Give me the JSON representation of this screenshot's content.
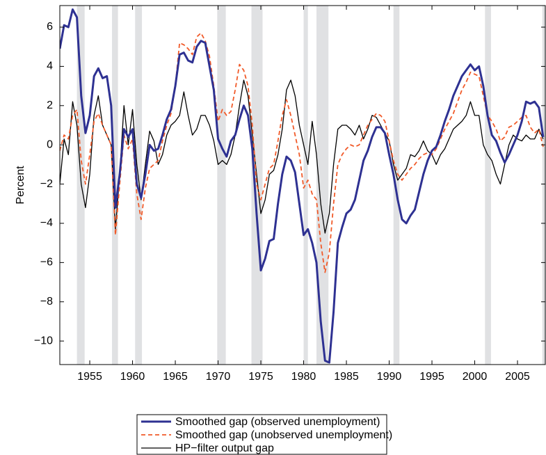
{
  "chart_data": {
    "type": "line",
    "y_label": "Percent",
    "xlim": [
      1951.5,
      2008.25
    ],
    "ylim": [
      -11.2,
      7.1
    ],
    "xticks": [
      1955,
      1960,
      1965,
      1970,
      1975,
      1980,
      1985,
      1990,
      1995,
      2000,
      2005
    ],
    "yticks": [
      {
        "value": -10,
        "label": "−10"
      },
      {
        "value": -8,
        "label": "−8"
      },
      {
        "value": -6,
        "label": "−6"
      },
      {
        "value": -4,
        "label": "−4"
      },
      {
        "value": -2,
        "label": "−2"
      },
      0,
      2,
      4,
      6
    ],
    "grid": false,
    "shaded_periods": [
      [
        1953.5,
        1954.4
      ],
      [
        1957.6,
        1958.3
      ],
      [
        1960.3,
        1961.1
      ],
      [
        1969.9,
        1970.9
      ],
      [
        1973.9,
        1975.2
      ],
      [
        1980.0,
        1980.5
      ],
      [
        1981.5,
        1982.9
      ],
      [
        1990.5,
        1991.2
      ],
      [
        2001.2,
        2001.9
      ],
      [
        2007.9,
        2008.25
      ]
    ],
    "shade_color": "#e0e1e3",
    "x": [
      1951.5,
      1952,
      1952.5,
      1953,
      1953.5,
      1954,
      1954.5,
      1955,
      1955.5,
      1956,
      1956.5,
      1957,
      1957.5,
      1958,
      1958.5,
      1959,
      1959.5,
      1960,
      1960.5,
      1961,
      1961.5,
      1962,
      1962.5,
      1963,
      1963.5,
      1964,
      1964.5,
      1965,
      1965.5,
      1966,
      1966.5,
      1967,
      1967.5,
      1968,
      1968.5,
      1969,
      1969.5,
      1970,
      1970.5,
      1971,
      1971.5,
      1972,
      1972.5,
      1973,
      1973.5,
      1974,
      1974.5,
      1975,
      1975.5,
      1976,
      1976.5,
      1977,
      1977.5,
      1978,
      1978.5,
      1979,
      1979.5,
      1980,
      1980.5,
      1981,
      1981.5,
      1982,
      1982.5,
      1983,
      1983.5,
      1984,
      1984.5,
      1985,
      1985.5,
      1986,
      1986.5,
      1987,
      1987.5,
      1988,
      1988.5,
      1989,
      1989.5,
      1990,
      1990.5,
      1991,
      1991.5,
      1992,
      1992.5,
      1993,
      1993.5,
      1994,
      1994.5,
      1995,
      1995.5,
      1996,
      1996.5,
      1997,
      1997.5,
      1998,
      1998.5,
      1999,
      1999.5,
      2000,
      2000.5,
      2001,
      2001.5,
      2002,
      2002.5,
      2003,
      2003.5,
      2004,
      2004.5,
      2005,
      2005.5,
      2006,
      2006.5,
      2007,
      2007.5,
      2008
    ],
    "series": [
      {
        "name": "Smoothed gap (observed unemployment)",
        "color": "#2e3192",
        "dash": false,
        "width": 3,
        "values": [
          4.9,
          6.1,
          6.0,
          6.9,
          6.5,
          2.5,
          0.6,
          1.5,
          3.5,
          3.9,
          3.4,
          3.5,
          2.0,
          -3.2,
          -1.5,
          0.8,
          0.4,
          0.8,
          -2.0,
          -2.7,
          -1.5,
          0.0,
          -0.3,
          -0.2,
          0.5,
          1.3,
          1.8,
          3.0,
          4.6,
          4.7,
          4.3,
          4.2,
          5.0,
          5.3,
          5.2,
          4.0,
          2.8,
          0.3,
          -0.2,
          -0.6,
          0.2,
          0.5,
          1.3,
          2.0,
          1.5,
          -0.2,
          -3.5,
          -6.4,
          -5.8,
          -4.9,
          -4.8,
          -3.0,
          -1.5,
          -0.6,
          -0.8,
          -1.4,
          -3.0,
          -4.6,
          -4.3,
          -5.0,
          -6.0,
          -9.0,
          -11.0,
          -11.1,
          -8.5,
          -5.0,
          -4.2,
          -3.5,
          -3.3,
          -2.8,
          -1.8,
          -0.8,
          -0.3,
          0.4,
          0.9,
          0.9,
          0.6,
          -0.5,
          -1.5,
          -2.8,
          -3.8,
          -4.0,
          -3.6,
          -3.3,
          -2.4,
          -1.5,
          -0.8,
          -0.3,
          -0.1,
          0.5,
          1.2,
          1.8,
          2.5,
          3.0,
          3.5,
          3.8,
          4.1,
          3.8,
          4.0,
          3.0,
          1.5,
          0.5,
          0.2,
          -0.4,
          -0.9,
          -0.5,
          0.0,
          0.5,
          1.2,
          2.2,
          2.1,
          2.2,
          1.9,
          0.4
        ]
      },
      {
        "name": "Smoothed gap (unobserved unemployment)",
        "color": "#f15a29",
        "dash": true,
        "width": 1.8,
        "values": [
          -0.3,
          0.5,
          0.3,
          1.5,
          1.8,
          -0.8,
          -2.0,
          -0.5,
          1.2,
          1.6,
          1.0,
          0.5,
          0.0,
          -4.6,
          -2.0,
          0.5,
          -0.2,
          0.3,
          -2.5,
          -3.8,
          -2.2,
          -1.2,
          -1.0,
          -0.8,
          0.2,
          1.0,
          1.6,
          3.0,
          5.2,
          5.1,
          4.9,
          4.6,
          5.5,
          5.7,
          5.3,
          4.5,
          3.0,
          1.2,
          1.8,
          1.5,
          1.7,
          2.8,
          4.1,
          3.8,
          3.0,
          1.0,
          -2.0,
          -2.8,
          -2.0,
          -1.2,
          -1.0,
          0.2,
          1.5,
          2.3,
          1.5,
          0.5,
          -0.5,
          -2.2,
          -1.8,
          -2.5,
          -2.8,
          -5.0,
          -6.5,
          -5.5,
          -3.0,
          -1.0,
          -0.5,
          -0.2,
          0.0,
          -0.1,
          0.0,
          0.5,
          1.0,
          1.3,
          1.6,
          1.5,
          1.2,
          0.2,
          -0.8,
          -1.5,
          -1.8,
          -1.5,
          -1.2,
          -1.0,
          -0.7,
          -0.5,
          -0.4,
          -0.5,
          -0.2,
          0.3,
          0.8,
          1.2,
          1.6,
          2.2,
          2.8,
          3.2,
          3.7,
          3.6,
          3.5,
          2.5,
          1.5,
          1.2,
          0.8,
          0.2,
          0.4,
          0.9,
          1.0,
          1.2,
          1.4,
          1.5,
          0.9,
          0.6,
          0.8,
          -0.1
        ]
      },
      {
        "name": "HP−filter output gap",
        "color": "#000000",
        "dash": false,
        "width": 1.3,
        "values": [
          -2.0,
          0.3,
          -0.5,
          2.2,
          1.0,
          -2.0,
          -3.2,
          -1.5,
          1.5,
          2.5,
          1.0,
          0.5,
          0.0,
          -4.3,
          -1.5,
          2.0,
          0.0,
          1.8,
          -1.0,
          -2.8,
          -1.0,
          0.7,
          0.2,
          -1.0,
          -0.5,
          0.5,
          1.0,
          1.2,
          1.5,
          2.7,
          1.5,
          0.5,
          0.8,
          1.5,
          1.5,
          1.0,
          0.2,
          -1.0,
          -0.8,
          -1.0,
          -0.5,
          0.5,
          2.0,
          3.3,
          2.5,
          0.5,
          -1.5,
          -3.5,
          -2.8,
          -1.5,
          -1.3,
          -0.5,
          0.8,
          2.8,
          3.3,
          2.5,
          1.0,
          0.0,
          -1.0,
          1.2,
          -0.5,
          -3.0,
          -4.5,
          -3.5,
          -1.0,
          0.8,
          1.0,
          1.0,
          0.8,
          0.5,
          1.0,
          0.3,
          0.8,
          1.5,
          1.4,
          1.0,
          0.6,
          0.2,
          -1.0,
          -1.8,
          -1.5,
          -1.2,
          -0.5,
          -0.6,
          -0.3,
          0.2,
          -0.3,
          -0.5,
          -1.0,
          -0.5,
          -0.2,
          0.3,
          0.8,
          1.0,
          1.2,
          1.5,
          2.2,
          1.5,
          1.5,
          0.0,
          -0.5,
          -0.8,
          -1.5,
          -2.0,
          -1.0,
          0.0,
          0.5,
          0.3,
          0.2,
          0.5,
          0.3,
          0.3,
          0.8,
          0.3
        ]
      }
    ]
  }
}
